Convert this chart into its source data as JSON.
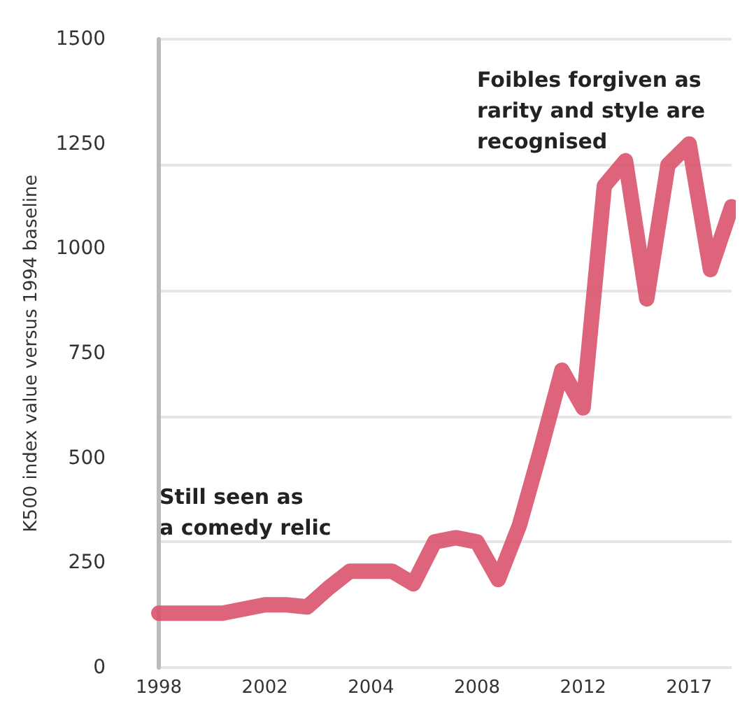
{
  "chart_data": {
    "type": "line",
    "ylabel": "K500 index value versus 1994 baseline",
    "categories": [
      "1998",
      null,
      null,
      null,
      null,
      "2002",
      null,
      null,
      null,
      null,
      "2004",
      null,
      null,
      null,
      null,
      "2008",
      null,
      null,
      null,
      null,
      "2012",
      null,
      null,
      null,
      null,
      "2017",
      null,
      null
    ],
    "series": [
      {
        "color": "#d9536b",
        "values": [
          130,
          130,
          130,
          130,
          140,
          150,
          150,
          145,
          190,
          230,
          230,
          230,
          200,
          300,
          310,
          300,
          210,
          340,
          520,
          710,
          620,
          1150,
          1210,
          880,
          1200,
          1250,
          950,
          1100
        ]
      }
    ],
    "ylim": [
      0,
      1500
    ],
    "yticks": [
      0,
      250,
      500,
      750,
      1000,
      1250,
      1500
    ],
    "grid": "y",
    "marker": "none",
    "line_style": "solid",
    "annotations": [
      "Foibles forgiven as rarity and style are recognised",
      "Still seen as a comedy relic"
    ]
  }
}
